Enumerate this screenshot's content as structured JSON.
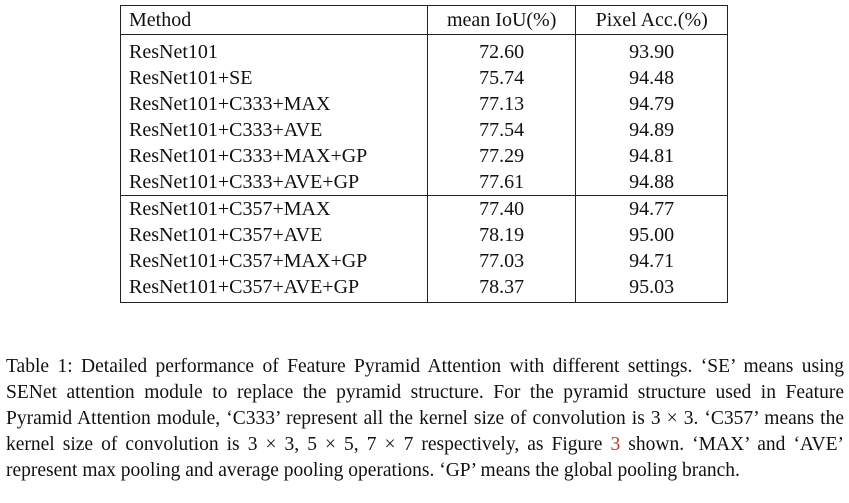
{
  "table": {
    "headers": [
      "Method",
      "mean IoU(%)",
      "Pixel Acc.(%)"
    ],
    "groups": [
      [
        [
          "ResNet101",
          "72.60",
          "93.90"
        ],
        [
          "ResNet101+SE",
          "75.74",
          "94.48"
        ],
        [
          "ResNet101+C333+MAX",
          "77.13",
          "94.79"
        ],
        [
          "ResNet101+C333+AVE",
          "77.54",
          "94.89"
        ],
        [
          "ResNet101+C333+MAX+GP",
          "77.29",
          "94.81"
        ],
        [
          "ResNet101+C333+AVE+GP",
          "77.61",
          "94.88"
        ]
      ],
      [
        [
          "ResNet101+C357+MAX",
          "77.40",
          "94.77"
        ],
        [
          "ResNet101+C357+AVE",
          "78.19",
          "95.00"
        ],
        [
          "ResNet101+C357+MAX+GP",
          "77.03",
          "94.71"
        ],
        [
          "ResNet101+C357+AVE+GP",
          "78.37",
          "95.03"
        ]
      ]
    ]
  },
  "caption": {
    "part1": "Table 1: Detailed performance of Feature Pyramid Attention with different settings. ‘SE’ means using SENet attention module to replace the pyramid structure. For the pyramid structure used in Feature Pyramid Attention module, ‘C333’ represent all the kernel size of convolution is 3 × 3. ‘C357’ means the kernel size of convolution is 3 × 3, 5 × 5, 7 × 7 respectively, as Figure ",
    "figure_ref": "3",
    "part2": " shown. ‘MAX’ and ‘AVE’ represent max pooling and average pooling operations. ‘GP’ means the global pooling branch."
  }
}
